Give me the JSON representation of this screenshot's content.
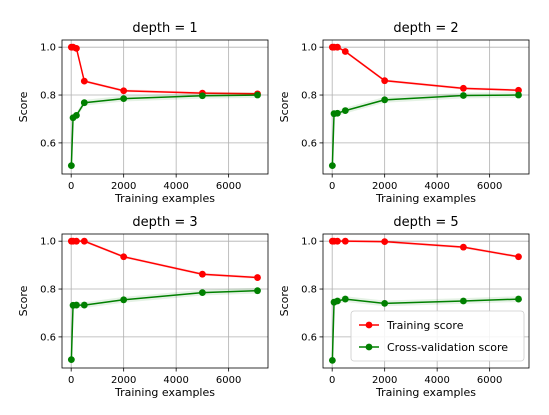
{
  "chart_data": [
    {
      "type": "line",
      "title": "depth = 1",
      "xlabel": "Training examples",
      "ylabel": "Score",
      "xlim": [
        -350,
        7500
      ],
      "ylim": [
        0.47,
        1.03
      ],
      "xticks": [
        0,
        2000,
        4000,
        6000
      ],
      "yticks": [
        0.6,
        0.8,
        1.0
      ],
      "grid": true,
      "x": [
        7,
        71,
        200,
        500,
        2000,
        5000,
        7100
      ],
      "series": [
        {
          "name": "Training score",
          "color": "#ff0000",
          "values": [
            1.0,
            1.0,
            0.995,
            0.858,
            0.818,
            0.808,
            0.805
          ],
          "band": 0.006
        },
        {
          "name": "Cross-validation score",
          "color": "#008000",
          "values": [
            0.505,
            0.705,
            0.715,
            0.768,
            0.785,
            0.797,
            0.8
          ],
          "band": 0.012
        }
      ]
    },
    {
      "type": "line",
      "title": "depth = 2",
      "xlabel": "Training examples",
      "ylabel": "Score",
      "xlim": [
        -350,
        7500
      ],
      "ylim": [
        0.47,
        1.03
      ],
      "xticks": [
        0,
        2000,
        4000,
        6000
      ],
      "yticks": [
        0.6,
        0.8,
        1.0
      ],
      "grid": true,
      "x": [
        7,
        71,
        200,
        500,
        2000,
        5000,
        7100
      ],
      "series": [
        {
          "name": "Training score",
          "color": "#ff0000",
          "values": [
            1.0,
            1.0,
            1.0,
            0.982,
            0.86,
            0.828,
            0.82
          ],
          "band": 0.006
        },
        {
          "name": "Cross-validation score",
          "color": "#008000",
          "values": [
            0.505,
            0.722,
            0.724,
            0.735,
            0.78,
            0.798,
            0.8
          ],
          "band": 0.012
        }
      ]
    },
    {
      "type": "line",
      "title": "depth = 3",
      "xlabel": "Training examples",
      "ylabel": "Score",
      "xlim": [
        -350,
        7500
      ],
      "ylim": [
        0.47,
        1.03
      ],
      "xticks": [
        0,
        2000,
        4000,
        6000
      ],
      "yticks": [
        0.6,
        0.8,
        1.0
      ],
      "grid": true,
      "x": [
        7,
        71,
        200,
        500,
        2000,
        5000,
        7100
      ],
      "series": [
        {
          "name": "Training score",
          "color": "#ff0000",
          "values": [
            1.0,
            1.0,
            1.0,
            1.0,
            0.935,
            0.862,
            0.848
          ],
          "band": 0.006
        },
        {
          "name": "Cross-validation score",
          "color": "#008000",
          "values": [
            0.505,
            0.732,
            0.733,
            0.733,
            0.755,
            0.785,
            0.793
          ],
          "band": 0.012
        }
      ]
    },
    {
      "type": "line",
      "title": "depth = 5",
      "xlabel": "Training examples",
      "ylabel": "Score",
      "xlim": [
        -350,
        7500
      ],
      "ylim": [
        0.47,
        1.03
      ],
      "xticks": [
        0,
        2000,
        4000,
        6000
      ],
      "yticks": [
        0.6,
        0.8,
        1.0
      ],
      "grid": true,
      "x": [
        7,
        71,
        200,
        500,
        2000,
        5000,
        7100
      ],
      "legend": "lower right",
      "series": [
        {
          "name": "Training score",
          "color": "#ff0000",
          "values": [
            1.0,
            1.0,
            1.0,
            1.0,
            0.998,
            0.975,
            0.935
          ],
          "band": 0.006
        },
        {
          "name": "Cross-validation score",
          "color": "#008000",
          "values": [
            0.502,
            0.745,
            0.75,
            0.758,
            0.74,
            0.75,
            0.758
          ],
          "band": 0.012
        }
      ]
    }
  ]
}
